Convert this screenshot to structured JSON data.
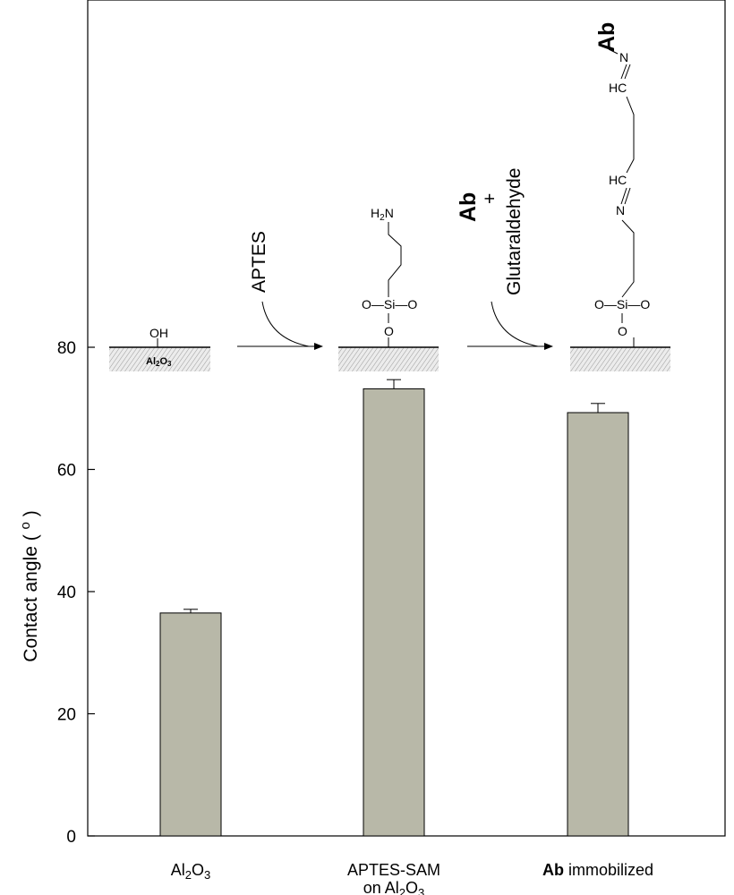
{
  "chart_data": {
    "type": "bar",
    "categories": [
      {
        "text": "Al",
        "sub1": "2",
        "mid": "O",
        "sub2": "3",
        "bold_prefix": "",
        "line2": "",
        "line2_sub1": "",
        "line2_mid": "",
        "line2_sub2": ""
      },
      {
        "text": "APTES-SAM",
        "sub1": "",
        "mid": "",
        "sub2": "",
        "bold_prefix": "",
        "line2": "on Al",
        "line2_sub1": "2",
        "line2_mid": "O",
        "line2_sub2": "3"
      },
      {
        "text": " immobilized",
        "sub1": "",
        "mid": "",
        "sub2": "",
        "bold_prefix": "Ab",
        "line2": "",
        "line2_sub1": "",
        "line2_mid": "",
        "line2_sub2": ""
      }
    ],
    "values": [
      36.5,
      73.2,
      69.3
    ],
    "errors": [
      0.6,
      1.5,
      1.5
    ],
    "ylabel": "Contact angle ( ",
    "ylabel_unit": "o",
    "ylabel_close": " )",
    "ylim": [
      0,
      80
    ],
    "yticks": [
      0,
      20,
      40,
      60,
      80
    ],
    "grid": false,
    "bar_color": "#b8b8a8"
  },
  "scheme": {
    "substrate_label": "Al",
    "substrate_sub1": "2",
    "substrate_mid": "O",
    "substrate_sub2": "3",
    "oh": "OH",
    "arrow1_label": "APTES",
    "arrow2_label_bold": "Ab",
    "arrow2_plus": "+",
    "arrow2_label": "Glutaraldehyde",
    "nh2_h": "H",
    "nh2_sub": "2",
    "nh2_n": "N",
    "si": "O—Si—O",
    "o": "O",
    "hc": "HC",
    "n": "N",
    "ab_top": "Ab"
  }
}
